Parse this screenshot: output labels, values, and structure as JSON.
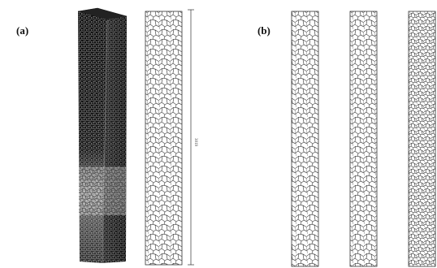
{
  "figure": {
    "panel_a_label": "(a)",
    "panel_b_label": "(b)",
    "dimension_label": "3019"
  },
  "colors": {
    "mesh_dark": "#1a1a1a",
    "mesh_line": "#4a4a4a",
    "background": "#ffffff"
  }
}
